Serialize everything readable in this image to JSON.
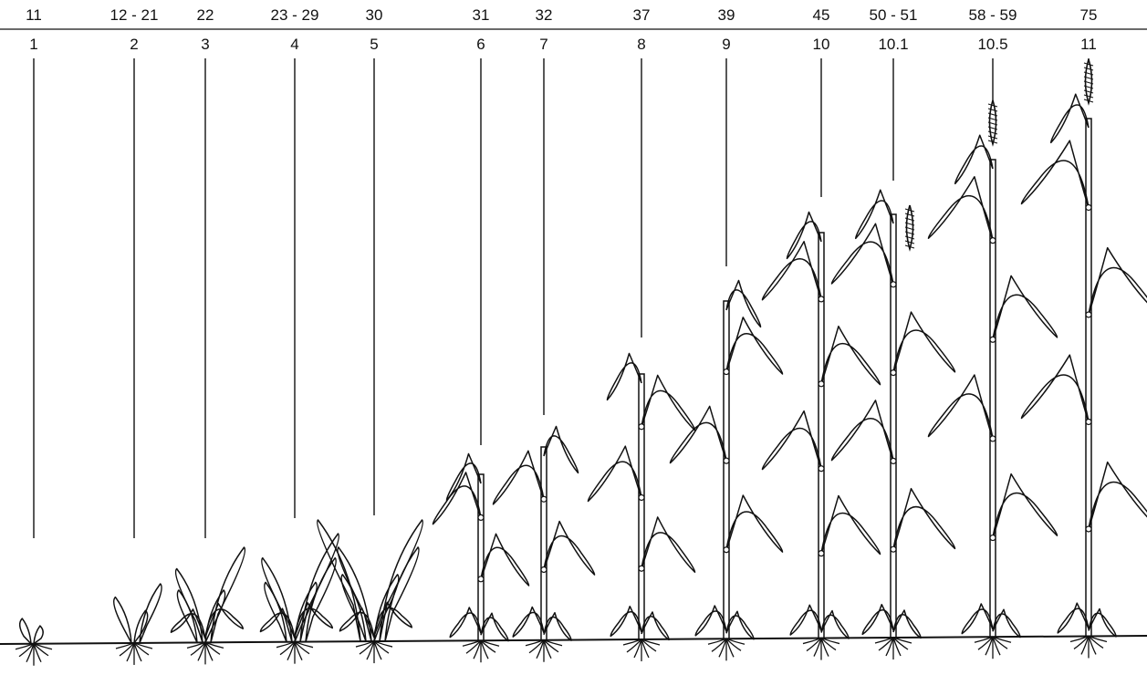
{
  "diagram": {
    "scale_top": [
      "11",
      "12 - 21",
      "22",
      "23 - 29",
      "30",
      "31",
      "32",
      "37",
      "39",
      "45",
      "50 - 51",
      "58 - 59",
      "75"
    ],
    "scale_bottom": [
      "1",
      "2",
      "3",
      "4",
      "5",
      "6",
      "7",
      "8",
      "9",
      "10",
      "10.1",
      "10.5",
      "11"
    ],
    "line_color": "#111111",
    "background": "#ffffff"
  }
}
